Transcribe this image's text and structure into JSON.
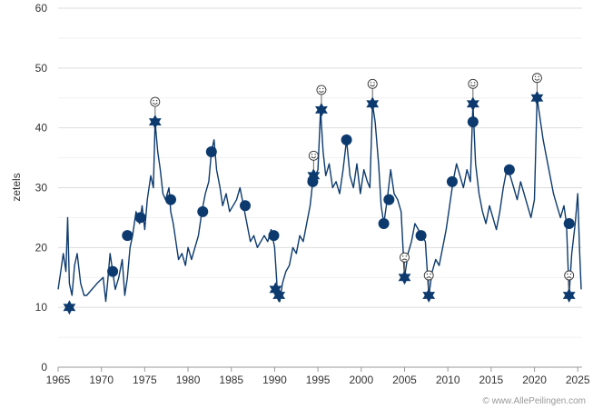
{
  "chart_data": {
    "type": "line",
    "title": "",
    "xlabel": "",
    "ylabel": "zetels",
    "xlim": [
      1965,
      2025.5
    ],
    "ylim": [
      0,
      60
    ],
    "x_ticks": [
      "1965",
      "1970",
      "1975",
      "1980",
      "1985",
      "1990",
      "1995",
      "2000",
      "2005",
      "2010",
      "2015",
      "2020",
      "2025"
    ],
    "y_ticks": [
      "0",
      "10",
      "20",
      "30",
      "40",
      "50",
      "60"
    ],
    "grid": true,
    "line_color": "#0d3a6e",
    "series": [
      {
        "values": [
          [
            1965.0,
            13
          ],
          [
            1965.3,
            16
          ],
          [
            1965.6,
            19
          ],
          [
            1965.9,
            16
          ],
          [
            1966.1,
            25
          ],
          [
            1966.3,
            14
          ],
          [
            1966.6,
            12
          ],
          [
            1966.9,
            17
          ],
          [
            1967.2,
            19
          ],
          [
            1967.6,
            14
          ],
          [
            1968.0,
            12
          ],
          [
            1968.3,
            12
          ],
          [
            1969.5,
            14
          ],
          [
            1970.2,
            15
          ],
          [
            1970.5,
            11
          ],
          [
            1970.7,
            14
          ],
          [
            1971.0,
            19
          ],
          [
            1971.3,
            16
          ],
          [
            1971.6,
            13
          ],
          [
            1972.0,
            15
          ],
          [
            1972.4,
            18
          ],
          [
            1972.7,
            12
          ],
          [
            1973.0,
            15
          ],
          [
            1973.3,
            20
          ],
          [
            1973.6,
            22
          ],
          [
            1974.0,
            26
          ],
          [
            1974.4,
            24
          ],
          [
            1974.7,
            27
          ],
          [
            1975.0,
            23
          ],
          [
            1975.3,
            28
          ],
          [
            1975.7,
            32
          ],
          [
            1976.0,
            30
          ],
          [
            1976.2,
            41
          ],
          [
            1976.5,
            36
          ],
          [
            1976.8,
            33
          ],
          [
            1977.1,
            29
          ],
          [
            1977.4,
            28
          ],
          [
            1977.8,
            30
          ],
          [
            1978.0,
            26
          ],
          [
            1978.3,
            24
          ],
          [
            1978.6,
            21
          ],
          [
            1978.9,
            18
          ],
          [
            1979.3,
            19
          ],
          [
            1979.7,
            17
          ],
          [
            1980.0,
            20
          ],
          [
            1980.4,
            18
          ],
          [
            1980.8,
            20
          ],
          [
            1981.2,
            22
          ],
          [
            1981.6,
            26
          ],
          [
            1982.0,
            29
          ],
          [
            1982.4,
            31
          ],
          [
            1982.7,
            36
          ],
          [
            1983.0,
            38
          ],
          [
            1983.3,
            33
          ],
          [
            1983.7,
            30
          ],
          [
            1984.0,
            27
          ],
          [
            1984.4,
            29
          ],
          [
            1984.8,
            26
          ],
          [
            1985.2,
            27
          ],
          [
            1985.6,
            28
          ],
          [
            1986.0,
            30
          ],
          [
            1986.4,
            27
          ],
          [
            1986.8,
            24
          ],
          [
            1987.2,
            21
          ],
          [
            1987.6,
            22
          ],
          [
            1988.0,
            20
          ],
          [
            1988.4,
            21
          ],
          [
            1988.8,
            22
          ],
          [
            1989.2,
            21
          ],
          [
            1989.6,
            23
          ],
          [
            1990.0,
            20
          ],
          [
            1990.3,
            13
          ],
          [
            1990.6,
            11
          ],
          [
            1990.9,
            14
          ],
          [
            1991.3,
            16
          ],
          [
            1991.7,
            17
          ],
          [
            1992.1,
            20
          ],
          [
            1992.5,
            19
          ],
          [
            1992.9,
            22
          ],
          [
            1993.3,
            21
          ],
          [
            1993.7,
            24
          ],
          [
            1994.1,
            27
          ],
          [
            1994.4,
            31
          ],
          [
            1994.7,
            32
          ],
          [
            1995.0,
            33
          ],
          [
            1995.3,
            43
          ],
          [
            1995.6,
            36
          ],
          [
            1995.9,
            32
          ],
          [
            1996.3,
            34
          ],
          [
            1996.7,
            30
          ],
          [
            1997.1,
            31
          ],
          [
            1997.5,
            29
          ],
          [
            1997.9,
            33
          ],
          [
            1998.3,
            38
          ],
          [
            1998.7,
            32
          ],
          [
            1999.1,
            30
          ],
          [
            1999.5,
            34
          ],
          [
            1999.9,
            29
          ],
          [
            2000.3,
            33
          ],
          [
            2000.7,
            31
          ],
          [
            2001.0,
            30
          ],
          [
            2001.3,
            44
          ],
          [
            2001.6,
            41
          ],
          [
            2002.0,
            34
          ],
          [
            2002.3,
            27
          ],
          [
            2002.6,
            24
          ],
          [
            2003.0,
            28
          ],
          [
            2003.4,
            33
          ],
          [
            2003.8,
            29
          ],
          [
            2004.2,
            28
          ],
          [
            2004.6,
            26
          ],
          [
            2005.0,
            15
          ],
          [
            2005.4,
            19
          ],
          [
            2005.8,
            21
          ],
          [
            2006.2,
            24
          ],
          [
            2006.6,
            23
          ],
          [
            2007.0,
            22
          ],
          [
            2007.4,
            21
          ],
          [
            2007.8,
            12
          ],
          [
            2008.2,
            16
          ],
          [
            2008.6,
            18
          ],
          [
            2009.0,
            17
          ],
          [
            2009.4,
            20
          ],
          [
            2009.8,
            23
          ],
          [
            2010.2,
            27
          ],
          [
            2010.6,
            31
          ],
          [
            2011.0,
            34
          ],
          [
            2011.4,
            32
          ],
          [
            2011.8,
            30
          ],
          [
            2012.2,
            33
          ],
          [
            2012.6,
            31
          ],
          [
            2012.9,
            44
          ],
          [
            2013.2,
            34
          ],
          [
            2013.6,
            29
          ],
          [
            2014.0,
            26
          ],
          [
            2014.4,
            24
          ],
          [
            2014.8,
            27
          ],
          [
            2015.2,
            25
          ],
          [
            2015.6,
            23
          ],
          [
            2016.0,
            26
          ],
          [
            2016.4,
            30
          ],
          [
            2016.8,
            33
          ],
          [
            2017.2,
            32
          ],
          [
            2017.6,
            30
          ],
          [
            2018.0,
            28
          ],
          [
            2018.4,
            31
          ],
          [
            2018.8,
            29
          ],
          [
            2019.2,
            27
          ],
          [
            2019.6,
            25
          ],
          [
            2020.0,
            28
          ],
          [
            2020.3,
            45
          ],
          [
            2020.6,
            42
          ],
          [
            2021.0,
            38
          ],
          [
            2021.4,
            35
          ],
          [
            2021.8,
            32
          ],
          [
            2022.2,
            29
          ],
          [
            2022.6,
            27
          ],
          [
            2023.0,
            25
          ],
          [
            2023.4,
            27
          ],
          [
            2023.7,
            24
          ],
          [
            2024.0,
            12
          ],
          [
            2024.3,
            19
          ],
          [
            2024.7,
            24
          ],
          [
            2025.0,
            29
          ],
          [
            2025.2,
            20
          ],
          [
            2025.4,
            13
          ]
        ]
      }
    ],
    "markers": [
      {
        "year": 1966.3,
        "value": 10,
        "shape": "star",
        "emoji": ""
      },
      {
        "year": 1971.3,
        "value": 16,
        "shape": "circle",
        "emoji": ""
      },
      {
        "year": 1973.0,
        "value": 22,
        "shape": "circle",
        "emoji": ""
      },
      {
        "year": 1974.5,
        "value": 25,
        "shape": "circle",
        "emoji": ""
      },
      {
        "year": 1976.2,
        "value": 41,
        "shape": "star",
        "emoji": "happy"
      },
      {
        "year": 1978.0,
        "value": 28,
        "shape": "circle",
        "emoji": ""
      },
      {
        "year": 1981.7,
        "value": 26,
        "shape": "circle",
        "emoji": ""
      },
      {
        "year": 1982.7,
        "value": 36,
        "shape": "circle",
        "emoji": ""
      },
      {
        "year": 1986.6,
        "value": 27,
        "shape": "circle",
        "emoji": ""
      },
      {
        "year": 1989.9,
        "value": 22,
        "shape": "circle",
        "emoji": ""
      },
      {
        "year": 1990.1,
        "value": 13,
        "shape": "star",
        "emoji": ""
      },
      {
        "year": 1990.5,
        "value": 12,
        "shape": "star",
        "emoji": ""
      },
      {
        "year": 1994.4,
        "value": 31,
        "shape": "circle",
        "emoji": ""
      },
      {
        "year": 1994.5,
        "value": 32,
        "shape": "star",
        "emoji": "happy"
      },
      {
        "year": 1995.4,
        "value": 43,
        "shape": "star",
        "emoji": "happy"
      },
      {
        "year": 1998.3,
        "value": 38,
        "shape": "circle",
        "emoji": ""
      },
      {
        "year": 2001.3,
        "value": 44,
        "shape": "star",
        "emoji": "happy"
      },
      {
        "year": 2002.6,
        "value": 24,
        "shape": "circle",
        "emoji": ""
      },
      {
        "year": 2003.2,
        "value": 28,
        "shape": "circle",
        "emoji": ""
      },
      {
        "year": 2005.0,
        "value": 15,
        "shape": "star",
        "emoji": "sad"
      },
      {
        "year": 2006.9,
        "value": 22,
        "shape": "circle",
        "emoji": ""
      },
      {
        "year": 2007.8,
        "value": 12,
        "shape": "star",
        "emoji": "sad"
      },
      {
        "year": 2010.5,
        "value": 31,
        "shape": "circle",
        "emoji": ""
      },
      {
        "year": 2012.9,
        "value": 41,
        "shape": "circle",
        "emoji": ""
      },
      {
        "year": 2012.9,
        "value": 44,
        "shape": "star",
        "emoji": "happy"
      },
      {
        "year": 2017.1,
        "value": 33,
        "shape": "circle",
        "emoji": ""
      },
      {
        "year": 2020.3,
        "value": 45,
        "shape": "star",
        "emoji": "happy"
      },
      {
        "year": 2024.0,
        "value": 24,
        "shape": "circle",
        "emoji": ""
      },
      {
        "year": 2024.0,
        "value": 12,
        "shape": "star",
        "emoji": "sad"
      }
    ]
  },
  "credit": "© www.AllePeilingen.com"
}
